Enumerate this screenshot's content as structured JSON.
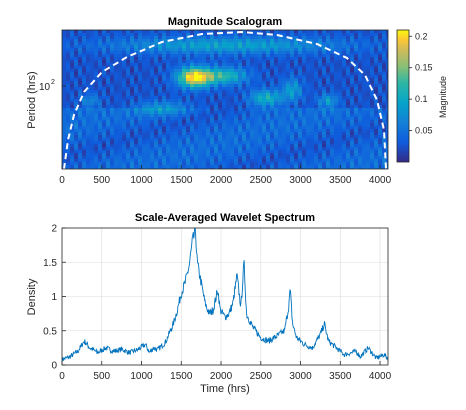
{
  "colors": {
    "line": "#0072BD",
    "axis": "#262626",
    "grid": "#dcdcdc",
    "coi": "#ffffff",
    "colormap": "parula"
  },
  "top_chart": {
    "type": "heatmap",
    "title": "Magnitude Scalogram",
    "ylabel": "Period (hrs)",
    "y_scale": "log",
    "y_tick_label": "10",
    "y_tick_exponent": "2",
    "xlim": [
      0,
      4100
    ],
    "x_ticks": [
      "0",
      "500",
      "1000",
      "1500",
      "2000",
      "2500",
      "3000",
      "3500",
      "4000"
    ],
    "colorbar": {
      "label": "Magnitude",
      "range": [
        0,
        0.21
      ],
      "ticks": [
        "0.05",
        "0.1",
        "0.15",
        "0.2"
      ]
    }
  },
  "chart_data": {
    "type": "line",
    "title": "Scale-Averaged Wavelet Spectrum",
    "xlabel": "Time (hrs)",
    "ylabel": "Density",
    "xlim": [
      0,
      4100
    ],
    "ylim": [
      0,
      2
    ],
    "grid": true,
    "x_ticks": [
      "0",
      "500",
      "1000",
      "1500",
      "2000",
      "2500",
      "3000",
      "3500",
      "4000"
    ],
    "y_ticks": [
      "0",
      "0.5",
      "1",
      "1.5",
      "2"
    ],
    "x": [
      0,
      100,
      200,
      280,
      350,
      450,
      550,
      650,
      750,
      850,
      950,
      1050,
      1100,
      1150,
      1200,
      1300,
      1400,
      1450,
      1500,
      1550,
      1600,
      1640,
      1680,
      1700,
      1750,
      1800,
      1850,
      1900,
      1960,
      1990,
      2050,
      2100,
      2150,
      2200,
      2250,
      2290,
      2320,
      2400,
      2500,
      2600,
      2700,
      2800,
      2850,
      2870,
      2900,
      2950,
      3050,
      3150,
      3250,
      3300,
      3350,
      3450,
      3550,
      3650,
      3700,
      3750,
      3850,
      3950,
      4050,
      4100
    ],
    "y": [
      0.08,
      0.12,
      0.2,
      0.35,
      0.25,
      0.18,
      0.25,
      0.2,
      0.23,
      0.18,
      0.22,
      0.3,
      0.18,
      0.25,
      0.22,
      0.33,
      0.6,
      0.8,
      1.05,
      1.2,
      1.45,
      1.8,
      1.95,
      1.5,
      1.2,
      0.9,
      0.75,
      0.8,
      1.1,
      0.8,
      0.7,
      0.75,
      0.9,
      1.3,
      0.85,
      1.5,
      0.75,
      0.55,
      0.4,
      0.35,
      0.42,
      0.5,
      0.85,
      1.1,
      0.6,
      0.4,
      0.3,
      0.25,
      0.45,
      0.6,
      0.35,
      0.25,
      0.15,
      0.18,
      0.2,
      0.12,
      0.25,
      0.1,
      0.15,
      0.1
    ]
  }
}
